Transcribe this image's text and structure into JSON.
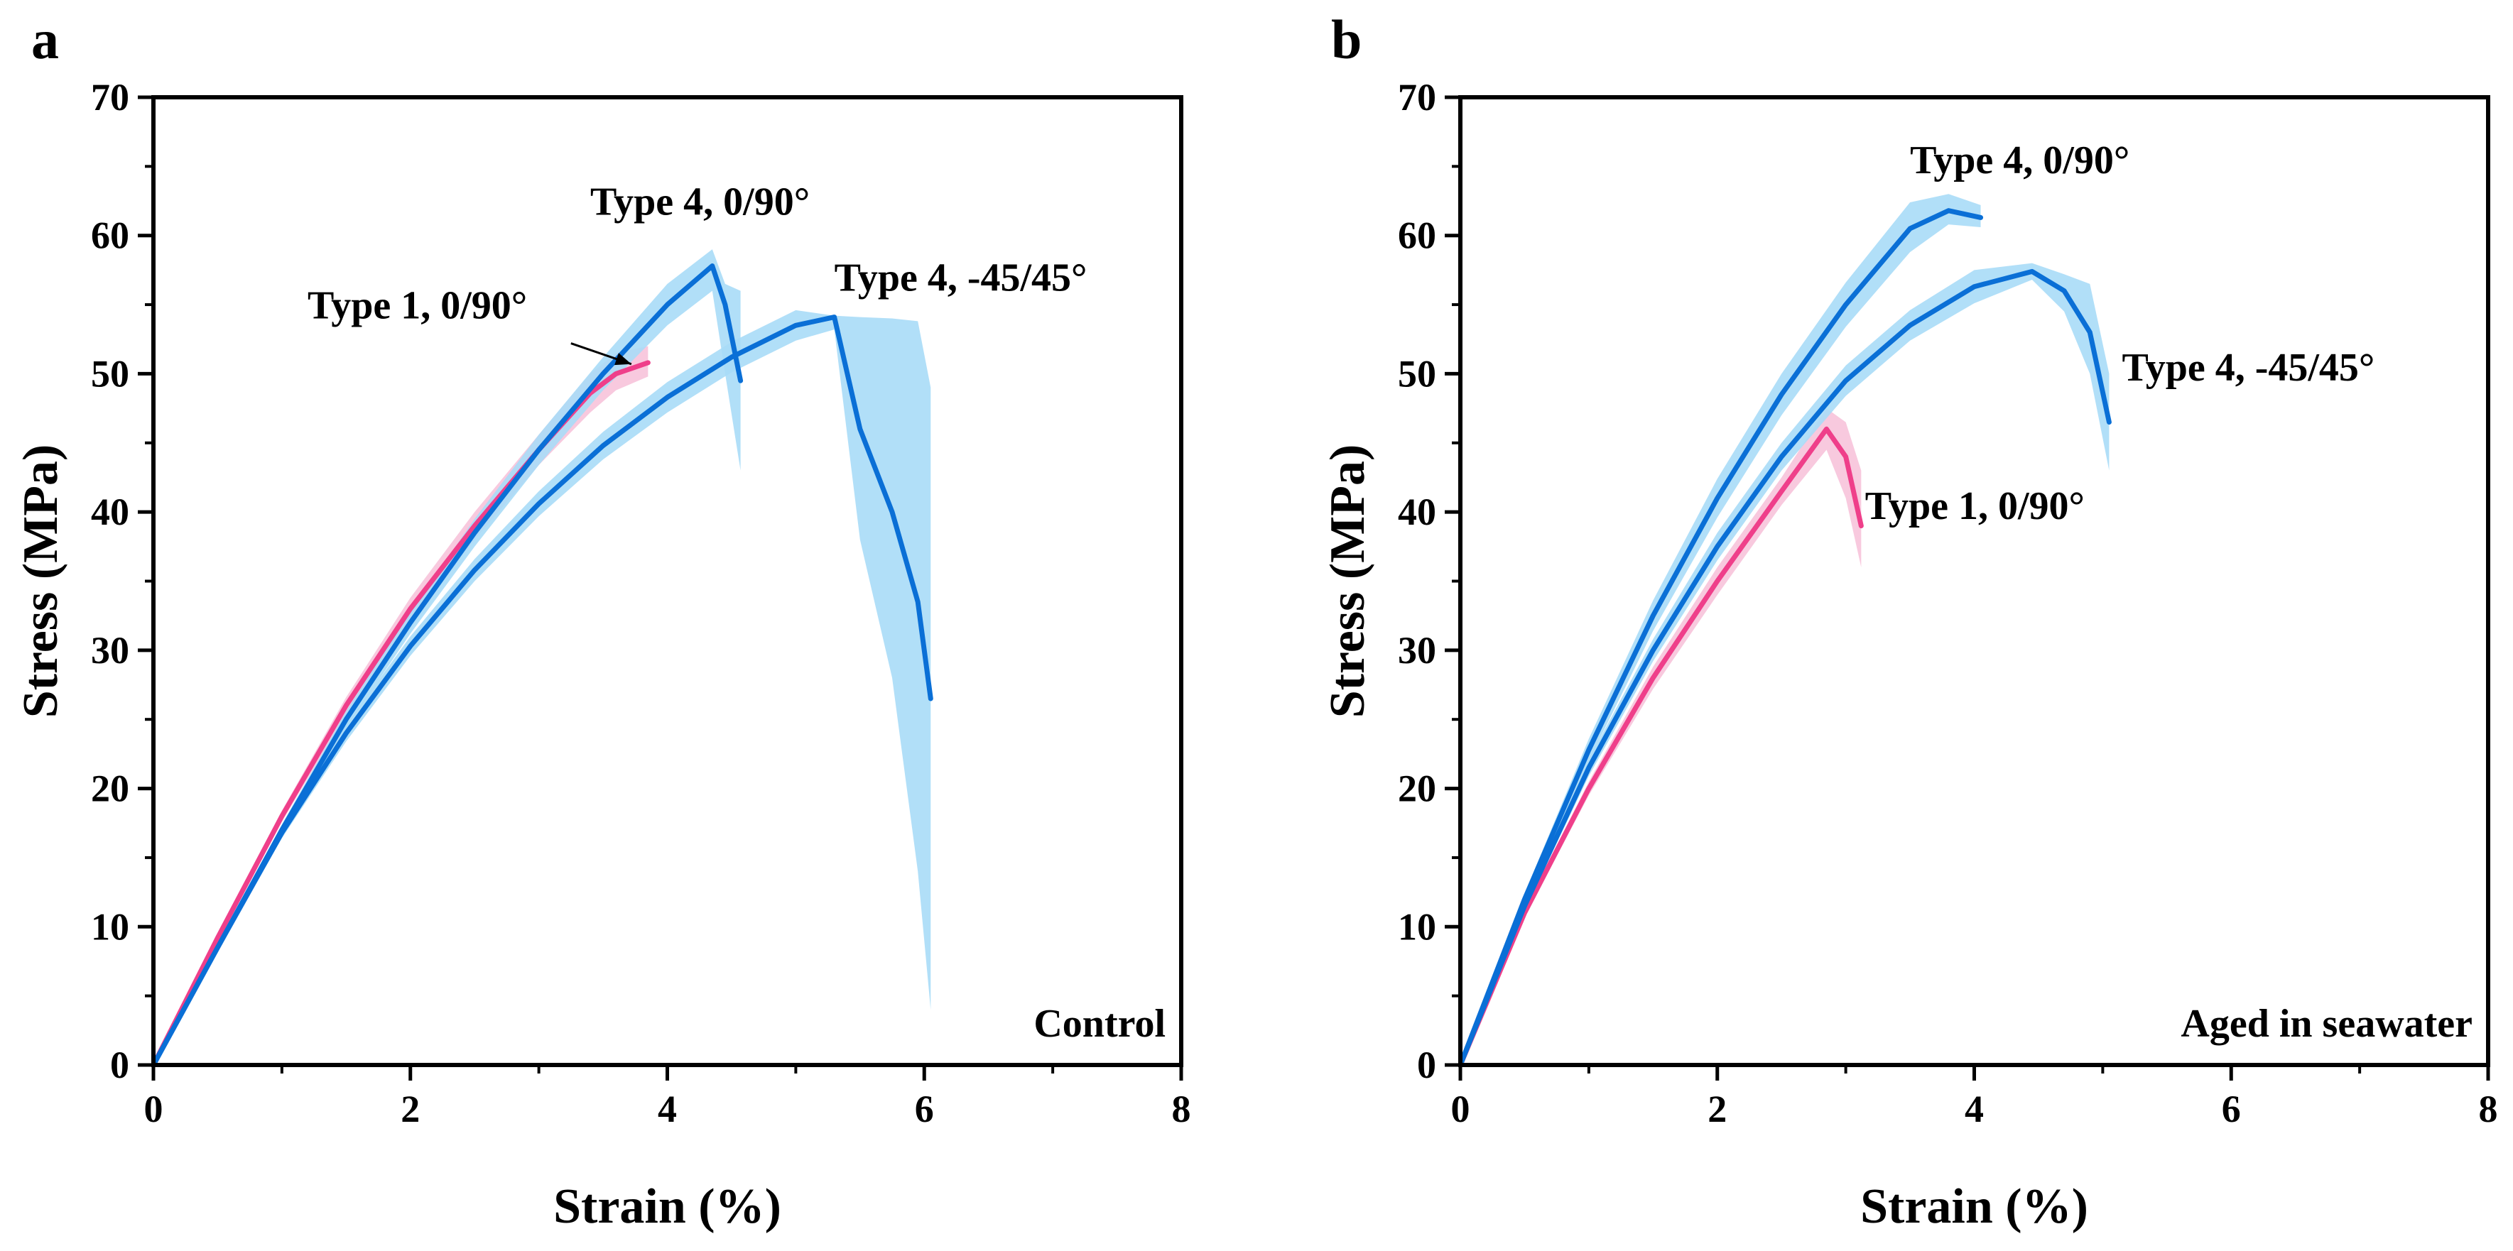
{
  "colors": {
    "type4_line": "#0a6fd6",
    "type4_band": "#a9dcf7",
    "type1_line": "#ef3f8a",
    "type1_band": "#f7c3da"
  },
  "chart_data": [
    {
      "type": "line",
      "panel": "a",
      "corner_label": "Control",
      "xlabel": "Strain (%)",
      "ylabel": "Stress (MPa)",
      "xlim": [
        0,
        8
      ],
      "ylim": [
        0,
        70
      ],
      "xticks": [
        0,
        2,
        4,
        6,
        8
      ],
      "yticks": [
        0,
        10,
        20,
        30,
        40,
        50,
        60,
        70
      ],
      "grid": false,
      "legend": "none",
      "series": [
        {
          "name": "Type 1, 0/90°",
          "color": "type1",
          "x": [
            0,
            0.5,
            1.0,
            1.5,
            2.0,
            2.5,
            3.0,
            3.4,
            3.6,
            3.85
          ],
          "y": [
            0,
            9.2,
            18.0,
            26.0,
            33.0,
            39.0,
            44.5,
            48.6,
            50.0,
            50.8
          ],
          "band_upper": [
            0,
            9.4,
            18.4,
            26.6,
            33.8,
            40.0,
            45.6,
            50.0,
            51.5,
            52.0
          ],
          "band_lower": [
            0,
            9.0,
            17.6,
            25.4,
            32.2,
            38.0,
            43.4,
            47.2,
            48.8,
            49.8
          ]
        },
        {
          "name": "Type 4, 0/90°",
          "color": "type4",
          "x": [
            0,
            0.5,
            1.0,
            1.5,
            2.0,
            2.5,
            3.0,
            3.5,
            4.0,
            4.35,
            4.45,
            4.57
          ],
          "y": [
            0,
            8.5,
            17.0,
            25.0,
            32.0,
            38.5,
            44.5,
            50.0,
            55.0,
            57.8,
            55.0,
            49.5
          ],
          "band_upper": [
            0,
            8.7,
            17.4,
            25.6,
            32.8,
            39.5,
            45.6,
            51.2,
            56.5,
            59.0,
            56.5,
            56.0
          ],
          "band_lower": [
            0,
            8.3,
            16.6,
            24.4,
            31.2,
            37.5,
            43.4,
            48.8,
            53.5,
            56.0,
            50.0,
            43.0
          ]
        },
        {
          "name": "Type 4, -45/45°",
          "color": "type4",
          "x": [
            0,
            0.5,
            1.0,
            1.5,
            2.0,
            2.5,
            3.0,
            3.5,
            4.0,
            4.5,
            5.0,
            5.3,
            5.5,
            5.75,
            5.95,
            6.05
          ],
          "y": [
            0,
            8.5,
            16.8,
            24.0,
            30.3,
            35.8,
            40.6,
            44.8,
            48.3,
            51.2,
            53.5,
            54.1,
            46.0,
            40.0,
            33.5,
            26.5
          ],
          "band_upper": [
            0,
            8.7,
            17.2,
            24.6,
            31.0,
            36.6,
            41.5,
            45.8,
            49.4,
            52.3,
            54.6,
            54.2,
            54.1,
            54.0,
            53.8,
            49.0
          ],
          "band_lower": [
            0,
            8.3,
            16.4,
            23.4,
            29.6,
            35.0,
            39.7,
            43.8,
            47.2,
            50.1,
            52.4,
            53.2,
            38.0,
            28.0,
            14.0,
            4.0
          ]
        }
      ],
      "annotations": [
        {
          "text": "Type 4, 0/90°",
          "x": 3.4,
          "y": 61.5
        },
        {
          "text": "Type 1, 0/90°",
          "x": 1.2,
          "y": 54.0
        },
        {
          "text": "Type 4, -45/45°",
          "x": 5.3,
          "y": 56.0
        }
      ],
      "arrow": {
        "from": [
          3.25,
          52.2
        ],
        "to": [
          3.72,
          50.7
        ]
      }
    },
    {
      "type": "line",
      "panel": "b",
      "corner_label": "Aged in seawater",
      "xlabel": "Strain (%)",
      "ylabel": "Stress (MPa)",
      "xlim": [
        0,
        8
      ],
      "ylim": [
        0,
        70
      ],
      "xticks": [
        0,
        2,
        4,
        6,
        8
      ],
      "yticks": [
        0,
        10,
        20,
        30,
        40,
        50,
        60,
        70
      ],
      "grid": false,
      "legend": "none",
      "series": [
        {
          "name": "Type 1, 0/90°",
          "color": "type1",
          "x": [
            0,
            0.5,
            1.0,
            1.5,
            2.0,
            2.5,
            2.85,
            3.0,
            3.12
          ],
          "y": [
            0,
            11.0,
            20.0,
            28.0,
            35.0,
            41.5,
            46.0,
            44.0,
            39.0
          ],
          "band_upper": [
            0,
            11.3,
            20.5,
            28.8,
            36.0,
            42.5,
            47.5,
            46.5,
            43.0
          ],
          "band_lower": [
            0,
            10.7,
            19.5,
            27.2,
            34.0,
            40.5,
            44.5,
            41.0,
            36.0
          ]
        },
        {
          "name": "Type 4, 0/90°",
          "color": "type4",
          "x": [
            0,
            0.5,
            1.0,
            1.5,
            2.0,
            2.5,
            3.0,
            3.5,
            3.8,
            4.05
          ],
          "y": [
            0,
            12.0,
            22.8,
            32.5,
            41.0,
            48.5,
            55.0,
            60.5,
            61.8,
            61.3
          ],
          "band_upper": [
            0,
            12.4,
            23.6,
            33.6,
            42.4,
            50.0,
            56.6,
            62.4,
            63.0,
            62.2
          ],
          "band_lower": [
            0,
            11.6,
            22.0,
            31.4,
            39.6,
            47.0,
            53.4,
            58.8,
            60.8,
            60.6
          ]
        },
        {
          "name": "Type 4, -45/45°",
          "color": "type4",
          "x": [
            0,
            0.5,
            1.0,
            1.5,
            2.0,
            2.5,
            3.0,
            3.5,
            4.0,
            4.45,
            4.7,
            4.9,
            5.05
          ],
          "y": [
            0,
            11.5,
            21.5,
            30.0,
            37.5,
            44.0,
            49.5,
            53.5,
            56.3,
            57.4,
            56.0,
            53.0,
            46.5
          ],
          "band_upper": [
            0,
            11.8,
            22.1,
            30.8,
            38.5,
            45.0,
            50.6,
            54.6,
            57.5,
            58.0,
            57.2,
            56.5,
            50.0
          ],
          "band_lower": [
            0,
            11.2,
            20.9,
            29.2,
            36.5,
            43.0,
            48.4,
            52.4,
            55.1,
            56.8,
            54.5,
            50.0,
            43.0
          ]
        }
      ],
      "annotations": [
        {
          "text": "Type 4, 0/90°",
          "x": 3.5,
          "y": 64.5
        },
        {
          "text": "Type 4, -45/45°",
          "x": 5.15,
          "y": 49.5
        },
        {
          "text": "Type 1, 0/90°",
          "x": 3.15,
          "y": 39.5
        }
      ]
    }
  ]
}
